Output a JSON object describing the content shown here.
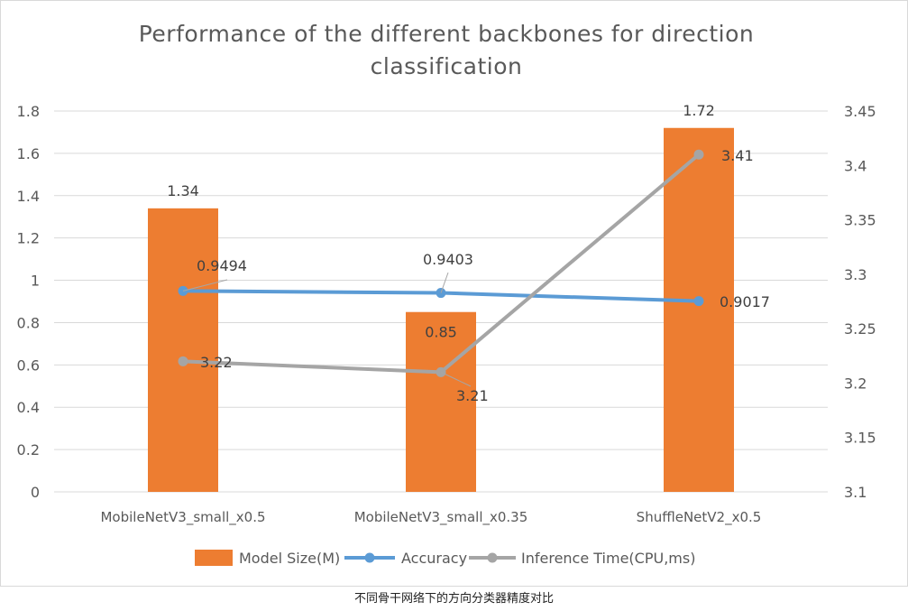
{
  "chart_data": {
    "type": "bar+line",
    "title_line1": "Performance of the different backbones for direction",
    "title_line2": "classification",
    "categories": [
      "MobileNetV3_small_x0.5",
      "MobileNetV3_small_x0.35",
      "ShuffleNetV2_x0.5"
    ],
    "series": [
      {
        "name": "Model Size(M)",
        "kind": "bar",
        "axis": "left",
        "color": "#ED7D31",
        "values": [
          1.34,
          0.85,
          1.72
        ],
        "labels": [
          "1.34",
          "0.85",
          "1.72"
        ]
      },
      {
        "name": "Accuracy",
        "kind": "line",
        "axis": "left",
        "color": "#5B9BD5",
        "values": [
          0.9494,
          0.9403,
          0.9017
        ],
        "labels": [
          "0.9494",
          "0.9403",
          "0.9017"
        ]
      },
      {
        "name": "Inference Time(CPU,ms)",
        "kind": "line",
        "axis": "right",
        "color": "#A5A5A5",
        "values": [
          3.22,
          3.21,
          3.41
        ],
        "labels": [
          "3.22",
          "3.21",
          "3.41"
        ]
      }
    ],
    "y_left": {
      "min": 0,
      "max": 1.8,
      "ticks": [
        "0",
        "0.2",
        "0.4",
        "0.6",
        "0.8",
        "1",
        "1.2",
        "1.4",
        "1.6",
        "1.8"
      ]
    },
    "y_right": {
      "min": 3.1,
      "max": 3.45,
      "ticks": [
        "3.1",
        "3.15",
        "3.2",
        "3.25",
        "3.3",
        "3.35",
        "3.4",
        "3.45"
      ]
    },
    "grid": true,
    "legend_position": "bottom"
  },
  "caption": "不同骨干网络下的方向分类器精度对比"
}
